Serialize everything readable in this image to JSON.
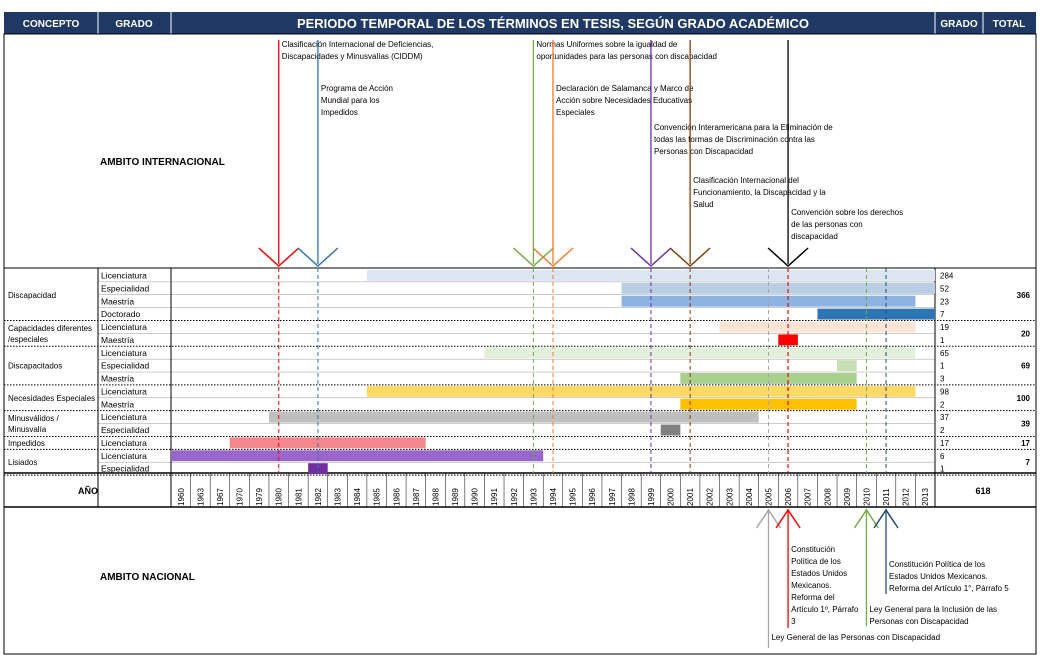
{
  "header": {
    "concepto": "CONCEPTO",
    "grado": "GRADO",
    "title": "PERIODO TEMPORAL DE LOS TÉRMINOS EN TESIS, SEGÚN GRADO ACADÉMICO",
    "grado_right": "GRADO",
    "total": "TOTAL"
  },
  "sections": {
    "international": "AMBITO INTERNACIONAL",
    "national": "AMBITO NACIONAL",
    "year_label": "AÑO",
    "grand_total": "618"
  },
  "colors": {
    "header_bg": "#1f3864",
    "header_text": "#ffffff"
  },
  "chart_data": {
    "type": "timeline",
    "years": [
      "1960",
      "1963",
      "1967",
      "1970",
      "1979",
      "1980",
      "1981",
      "1982",
      "1983",
      "1984",
      "1985",
      "1986",
      "1987",
      "1988",
      "1989",
      "1990",
      "1991",
      "1992",
      "1993",
      "1994",
      "1995",
      "1996",
      "1997",
      "1998",
      "1999",
      "2000",
      "2001",
      "2002",
      "2003",
      "2004",
      "2005",
      "2006",
      "2007",
      "2008",
      "2009",
      "2010",
      "2011",
      "2012",
      "2013"
    ],
    "groups": [
      {
        "concept": "Discapacidad",
        "total": "366",
        "rows": [
          {
            "grado": "Licenciatura",
            "value": "284",
            "bars": [
              {
                "start": "1985",
                "end": "2013",
                "color": "#dce6f2"
              }
            ]
          },
          {
            "grado": "Especialidad",
            "value": "52",
            "bars": [
              {
                "start": "1998",
                "end": "2013",
                "color": "#b9cde5"
              }
            ]
          },
          {
            "grado": "Maestría",
            "value": "23",
            "bars": [
              {
                "start": "1998",
                "end": "2012",
                "color": "#8db3e2"
              }
            ]
          },
          {
            "grado": "Doctorado",
            "value": "7",
            "bars": [
              {
                "start": "2008",
                "end": "2013",
                "color": "#2e75b6"
              }
            ]
          }
        ]
      },
      {
        "concept": "Capacidades diferentes /especiales",
        "total": "20",
        "rows": [
          {
            "grado": "Licenciatura",
            "value": "19",
            "bars": [
              {
                "start": "2003",
                "end": "2012",
                "color": "#fce4d6"
              }
            ]
          },
          {
            "grado": "Maestría",
            "value": "1",
            "bars": [
              {
                "start": "2006",
                "end": "2006",
                "color": "#ff0000"
              }
            ]
          }
        ]
      },
      {
        "concept": "Discapacitados",
        "total": "69",
        "rows": [
          {
            "grado": "Licenciatura",
            "value": "65",
            "bars": [
              {
                "start": "1991",
                "end": "2012",
                "color": "#e2efda"
              }
            ]
          },
          {
            "grado": "Especialidad",
            "value": "1",
            "bars": [
              {
                "start": "2009",
                "end": "2009",
                "color": "#c6e0b4"
              }
            ]
          },
          {
            "grado": "Maestría",
            "value": "3",
            "bars": [
              {
                "start": "2001",
                "end": "2009",
                "color": "#a9d08e"
              }
            ]
          }
        ]
      },
      {
        "concept": "Necesidades Especiales",
        "total": "100",
        "rows": [
          {
            "grado": "Licenciatura",
            "value": "98",
            "bars": [
              {
                "start": "1985",
                "end": "2012",
                "color": "#ffd966"
              }
            ]
          },
          {
            "grado": "Maestría",
            "value": "2",
            "bars": [
              {
                "start": "2001",
                "end": "2009",
                "color": "#ffc000"
              }
            ]
          }
        ]
      },
      {
        "concept": "Minusválidos / Minusvalía",
        "total": "39",
        "rows": [
          {
            "grado": "Licenciatura",
            "value": "37",
            "bars": [
              {
                "start": "1980",
                "end": "2004",
                "color": "#bfbfbf"
              }
            ]
          },
          {
            "grado": "Especialidad",
            "value": "2",
            "bars": [
              {
                "start": "2000",
                "end": "2000",
                "color": "#808080"
              }
            ]
          }
        ]
      },
      {
        "concept": "Impedidos",
        "total": "17",
        "rows": [
          {
            "grado": "Licenciatura",
            "value": "17",
            "bars": [
              {
                "start": "1970",
                "end": "1987",
                "color": "#f4868c"
              }
            ]
          }
        ]
      },
      {
        "concept": "Lisiados",
        "total": "7",
        "rows": [
          {
            "grado": "Licenciatura",
            "value": "6",
            "bars": [
              {
                "start": "1960",
                "end": "1993",
                "color": "#9966cc"
              }
            ]
          },
          {
            "grado": "Especialidad",
            "value": "1",
            "bars": [
              {
                "start": "1982",
                "end": "1982",
                "color": "#7030a0"
              }
            ]
          }
        ]
      }
    ],
    "international_events": [
      {
        "year": "1980",
        "color": "#ff0000",
        "lines": [
          "Clasificación Internacional de Deficiencias,",
          "Discapacidades y Minusvalías (CIDDM)"
        ]
      },
      {
        "year": "1982",
        "color": "#2e75b6",
        "lines": [
          "Programa de Acción",
          "Mundial para los",
          "Impedidos"
        ]
      },
      {
        "year": "1993",
        "color": "#70ad47",
        "lines": [
          "Normas Uniformes sobre la igualdad de",
          "oportunidades para las personas con discapacidad"
        ]
      },
      {
        "year": "1994",
        "color": "#ed7d31",
        "lines": [
          "Declaración de Salamanca y Marco de",
          "Acción sobre Necesidades Educativas",
          "Especiales"
        ]
      },
      {
        "year": "1999",
        "color": "#7030a0",
        "lines": [
          "Convención Interamericana para la Eliminación de",
          "todas las formas de Discriminación contra las",
          "Personas con Discapacidad"
        ]
      },
      {
        "year": "2001",
        "color": "#843c0c",
        "lines": [
          "Clasificación Internacional del",
          "Funcionamiento, la Discapacidad y la",
          "Salud"
        ]
      },
      {
        "year": "2006",
        "color": "#000000",
        "lines": [
          "Convención sobre los derechos",
          "de las personas con",
          "discapacidad"
        ]
      }
    ],
    "national_events": [
      {
        "year": "2005",
        "color": "#a6a6a6",
        "lines": [
          "Ley General de las Personas con Discapacidad"
        ]
      },
      {
        "year": "2006",
        "color": "#ff0000",
        "lines": [
          "Constitución",
          "Política de los",
          "Estados Unidos",
          "Mexicanos.",
          "Reforma del",
          "Artículo 1º, Párrafo",
          "3"
        ]
      },
      {
        "year": "2010",
        "color": "#70ad47",
        "lines": [
          "Ley General para la Inclusión de las",
          "Personas con Discapacidad"
        ]
      },
      {
        "year": "2011",
        "color": "#1f4e79",
        "lines": [
          "Constitución Política de los",
          "Estados Unidos Mexicanos.",
          "Reforma del Artículo 1°, Párrafo 5"
        ]
      }
    ]
  }
}
